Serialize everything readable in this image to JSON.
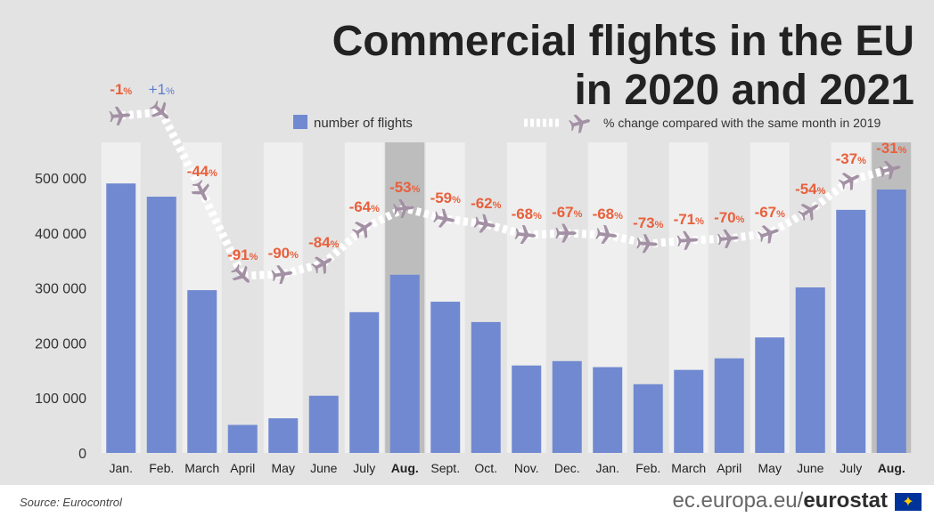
{
  "title_line1": "Commercial flights in the EU",
  "title_line2": "in 2020 and 2021",
  "legend": {
    "bars": "number of flights",
    "line": "% change compared with the same month in 2019"
  },
  "source": "Source: Eurocontrol",
  "brand_prefix": "ec.europa.eu/",
  "brand_suffix": "eurostat",
  "colors": {
    "bar": "#7089d0",
    "pct_negative": "#e8603c",
    "pct_positive": "#5a7ccf",
    "plane": "#a390a4",
    "path": "#ffffff",
    "background": "#e3e3e3",
    "band_light": "#efefef",
    "band_august": "#bdbdbd"
  },
  "chart_data": {
    "type": "bar",
    "categories": [
      "Jan.",
      "Feb.",
      "March",
      "April",
      "May",
      "June",
      "July",
      "Aug.",
      "Sept.",
      "Oct.",
      "Nov.",
      "Dec.",
      "Jan.",
      "Feb.",
      "March",
      "April",
      "May",
      "June",
      "July",
      "Aug."
    ],
    "bold_categories": [
      7,
      19
    ],
    "series": [
      {
        "name": "number of flights",
        "type": "bar",
        "values": [
          490000,
          466000,
          296000,
          51000,
          63000,
          104000,
          256000,
          324000,
          275000,
          238000,
          159000,
          167000,
          156000,
          125000,
          151000,
          172000,
          210000,
          301000,
          442000,
          479000
        ]
      },
      {
        "name": "% change compared with the same month in 2019",
        "type": "line",
        "values": [
          -1,
          1,
          -44,
          -91,
          -90,
          -84,
          -64,
          -53,
          -59,
          -62,
          -68,
          -67,
          -68,
          -73,
          -71,
          -70,
          -67,
          -54,
          -37,
          -31
        ],
        "labels": [
          "-1",
          "+1",
          "-44",
          "-91",
          "-90",
          "-84",
          "-64",
          "-53",
          "-59",
          "-62",
          "-68",
          "-67",
          "-68",
          "-73",
          "-71",
          "-70",
          "-67",
          "-54",
          "-37",
          "-31"
        ],
        "unit": "%"
      }
    ],
    "y_ticks": [
      "0",
      "100 000",
      "200 000",
      "300 000",
      "400 000",
      "500 000"
    ],
    "ylim": [
      0,
      500000
    ],
    "legend_position": "top",
    "grid": false
  }
}
